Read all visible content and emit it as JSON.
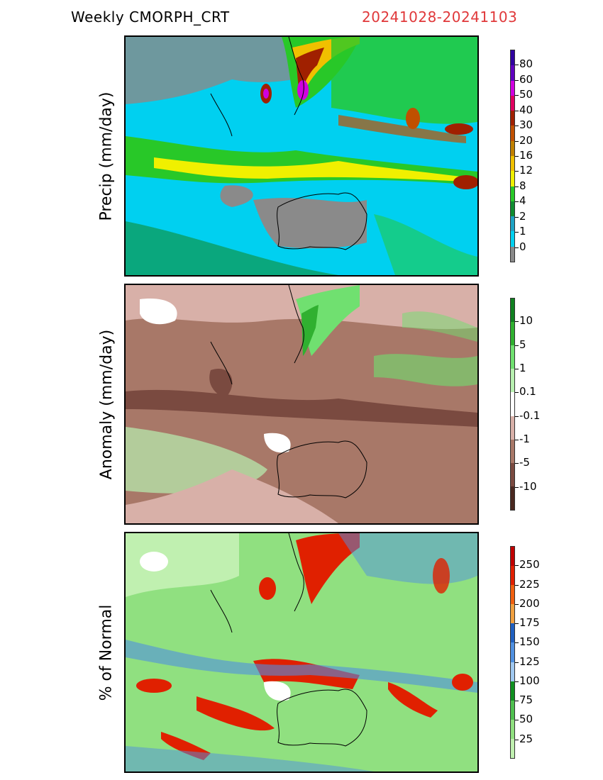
{
  "title": {
    "left": "Weekly CMORPH_CRT",
    "right": "20241028-20241103",
    "right_color": "#e0383a"
  },
  "panels": [
    {
      "ylabel": "Precip (mm/day)",
      "colorbar": {
        "labels": [
          "0",
          "1",
          "2",
          "4",
          "8",
          "12",
          "16",
          "20",
          "30",
          "40",
          "50",
          "60",
          "80"
        ],
        "colors": [
          "#8a8a8a",
          "#00d0f0",
          "#1ea3c4",
          "#108c30",
          "#28c828",
          "#f0f000",
          "#f0c000",
          "#c08000",
          "#c05000",
          "#a02000",
          "#e00060",
          "#d000e0",
          "#6000c0",
          "#3000a0"
        ]
      }
    },
    {
      "ylabel": "Anomaly (mm/day)",
      "colorbar": {
        "labels": [
          "-10",
          "-5",
          "-1",
          "-0.1",
          "0.1",
          "1",
          "5",
          "10"
        ],
        "colors": [
          "#4a2820",
          "#7a4a40",
          "#a87868",
          "#d8b0a8",
          "#ffffff",
          "#b8f0b0",
          "#70e070",
          "#30b030",
          "#108020"
        ]
      }
    },
    {
      "ylabel": "% of Normal",
      "colorbar": {
        "labels": [
          "25",
          "50",
          "75",
          "100",
          "125",
          "150",
          "175",
          "200",
          "225",
          "250"
        ],
        "colors": [
          "#c0f0b0",
          "#90e080",
          "#50c050",
          "#109020",
          "#a0c8f0",
          "#5090e0",
          "#2060c0",
          "#f0a040",
          "#f06010",
          "#e02000",
          "#c00000"
        ]
      }
    }
  ]
}
